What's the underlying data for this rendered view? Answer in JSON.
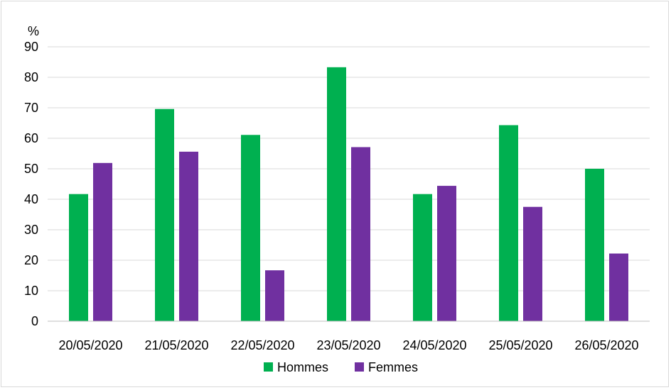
{
  "chart_data": {
    "type": "bar",
    "title": "",
    "xlabel": "",
    "ylabel": "%",
    "ylim": [
      0,
      90
    ],
    "yticks": [
      0,
      10,
      20,
      30,
      40,
      50,
      60,
      70,
      80,
      90
    ],
    "grid": true,
    "legend_position": "bottom",
    "categories": [
      "20/05/2020",
      "21/05/2020",
      "22/05/2020",
      "23/05/2020",
      "24/05/2020",
      "25/05/2020",
      "26/05/2020"
    ],
    "series": [
      {
        "name": "Hommes",
        "color": "#00b050",
        "values": [
          41.7,
          69.6,
          61.1,
          83.3,
          41.7,
          64.3,
          50.0
        ]
      },
      {
        "name": "Femmes",
        "color": "#7030a0",
        "values": [
          51.9,
          55.6,
          16.7,
          57.1,
          44.4,
          37.5,
          22.2
        ]
      }
    ]
  }
}
